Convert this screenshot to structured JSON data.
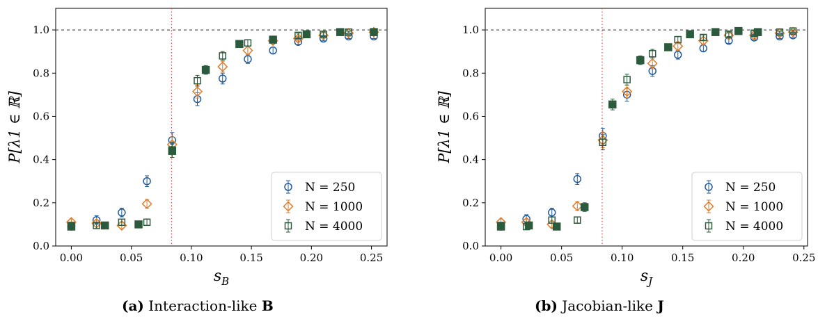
{
  "captions": [
    {
      "tag": "(a)",
      "text": "Interaction-like",
      "symbol": "B"
    },
    {
      "tag": "(b)",
      "text": "Jacobian-like",
      "symbol": "J"
    }
  ],
  "colors": {
    "N250": "#1f5a9e",
    "N1000": "#e07b29",
    "N4000": "#2c5a3c",
    "refline": "#555555",
    "critline": "#d64545"
  },
  "chart_data": [
    {
      "id": "a",
      "type": "scatter",
      "ylabel": "P[λ1 ∈ ℝ]",
      "xlabel": "s_B",
      "xlim": [
        -0.013,
        0.263
      ],
      "ylim": [
        0.0,
        1.1
      ],
      "xticks": [
        "0.00",
        "0.05",
        "0.10",
        "0.15",
        "0.20",
        "0.25"
      ],
      "yticks": [
        "0.0",
        "0.2",
        "0.4",
        "0.6",
        "0.8",
        "1.0"
      ],
      "reference_y": 1.0,
      "critical_x": 0.0835,
      "legend_position": "lower-right",
      "series": [
        {
          "name": "N = 250",
          "marker": "circle",
          "filled": false,
          "x": [
            0.0,
            0.021,
            0.042,
            0.063,
            0.084,
            0.105,
            0.126,
            0.147,
            0.168,
            0.189,
            0.21,
            0.231,
            0.252
          ],
          "y": [
            0.09,
            0.12,
            0.155,
            0.3,
            0.49,
            0.68,
            0.775,
            0.865,
            0.905,
            0.945,
            0.96,
            0.97,
            0.97
          ],
          "err": [
            0.015,
            0.02,
            0.02,
            0.025,
            0.035,
            0.03,
            0.025,
            0.02,
            0.015,
            0.012,
            0.01,
            0.01,
            0.01
          ]
        },
        {
          "name": "N = 1000",
          "marker": "diamond",
          "filled": false,
          "x": [
            0.0,
            0.021,
            0.042,
            0.063,
            0.084,
            0.105,
            0.126,
            0.147,
            0.168,
            0.189,
            0.21,
            0.231,
            0.252
          ],
          "y": [
            0.11,
            0.105,
            0.095,
            0.195,
            0.47,
            0.715,
            0.83,
            0.905,
            0.95,
            0.96,
            0.975,
            0.985,
            0.99
          ],
          "err": [
            0.015,
            0.015,
            0.015,
            0.02,
            0.035,
            0.03,
            0.025,
            0.02,
            0.015,
            0.01,
            0.01,
            0.008,
            0.005
          ]
        },
        {
          "name": "N = 4000",
          "marker": "square",
          "filled": false,
          "x": [
            0.0,
            0.021,
            0.042,
            0.063,
            0.084,
            0.105,
            0.126,
            0.147,
            0.168,
            0.189,
            0.21,
            0.231,
            0.252
          ],
          "y": [
            0.095,
            0.095,
            0.11,
            0.11,
            0.445,
            0.765,
            0.88,
            0.94,
            0.955,
            0.975,
            0.98,
            0.99,
            0.99
          ],
          "err": [
            0.015,
            0.015,
            0.015,
            0.015,
            0.035,
            0.025,
            0.02,
            0.015,
            0.012,
            0.01,
            0.01,
            0.005,
            0.005
          ]
        },
        {
          "name": "",
          "marker": "square",
          "filled": true,
          "x": [
            0.0,
            0.028,
            0.056,
            0.084,
            0.112,
            0.14,
            0.168,
            0.196,
            0.224,
            0.252
          ],
          "y": [
            0.09,
            0.095,
            0.1,
            0.44,
            0.815,
            0.935,
            0.955,
            0.98,
            0.99,
            0.99
          ],
          "err": [
            0.01,
            0.01,
            0.01,
            0.03,
            0.02,
            0.01,
            0.01,
            0.008,
            0.005,
            0.005
          ]
        }
      ]
    },
    {
      "id": "b",
      "type": "scatter",
      "ylabel": "P[λ1 ∈ ℝ]",
      "xlabel": "s_J",
      "xlim": [
        -0.013,
        0.253
      ],
      "ylim": [
        0.0,
        1.1
      ],
      "xticks": [
        "0.00",
        "0.05",
        "0.10",
        "0.15",
        "0.20",
        "0.25"
      ],
      "yticks": [
        "0.0",
        "0.2",
        "0.4",
        "0.6",
        "0.8",
        "1.0"
      ],
      "reference_y": 1.0,
      "critical_x": 0.0835,
      "legend_position": "lower-right",
      "series": [
        {
          "name": "N = 250",
          "marker": "circle",
          "filled": false,
          "x": [
            0.0,
            0.021,
            0.042,
            0.063,
            0.084,
            0.104,
            0.125,
            0.146,
            0.167,
            0.188,
            0.209,
            0.23,
            0.241
          ],
          "y": [
            0.09,
            0.125,
            0.155,
            0.31,
            0.51,
            0.7,
            0.81,
            0.885,
            0.915,
            0.95,
            0.965,
            0.97,
            0.975
          ],
          "err": [
            0.015,
            0.02,
            0.02,
            0.025,
            0.035,
            0.03,
            0.025,
            0.02,
            0.015,
            0.012,
            0.01,
            0.01,
            0.01
          ]
        },
        {
          "name": "N = 1000",
          "marker": "diamond",
          "filled": false,
          "x": [
            0.0,
            0.021,
            0.042,
            0.063,
            0.084,
            0.104,
            0.125,
            0.146,
            0.167,
            0.188,
            0.209,
            0.23,
            0.241
          ],
          "y": [
            0.11,
            0.11,
            0.1,
            0.185,
            0.49,
            0.715,
            0.845,
            0.925,
            0.95,
            0.975,
            0.975,
            0.985,
            0.99
          ],
          "err": [
            0.015,
            0.015,
            0.015,
            0.02,
            0.035,
            0.03,
            0.025,
            0.02,
            0.015,
            0.01,
            0.01,
            0.008,
            0.005
          ]
        },
        {
          "name": "N = 4000",
          "marker": "square",
          "filled": false,
          "x": [
            0.0,
            0.021,
            0.042,
            0.063,
            0.084,
            0.104,
            0.125,
            0.146,
            0.167,
            0.188,
            0.209,
            0.23,
            0.241
          ],
          "y": [
            0.095,
            0.09,
            0.12,
            0.12,
            0.48,
            0.77,
            0.89,
            0.955,
            0.965,
            0.98,
            0.985,
            0.99,
            0.995
          ],
          "err": [
            0.015,
            0.015,
            0.015,
            0.015,
            0.035,
            0.025,
            0.02,
            0.015,
            0.012,
            0.01,
            0.01,
            0.005,
            0.005
          ]
        },
        {
          "name": "",
          "marker": "square",
          "filled": true,
          "x": [
            0.0,
            0.023,
            0.046,
            0.069,
            0.092,
            0.115,
            0.138,
            0.156,
            0.177,
            0.196,
            0.212
          ],
          "y": [
            0.09,
            0.095,
            0.09,
            0.18,
            0.655,
            0.86,
            0.92,
            0.98,
            0.99,
            0.995,
            0.99
          ],
          "err": [
            0.01,
            0.01,
            0.01,
            0.02,
            0.025,
            0.02,
            0.01,
            0.01,
            0.008,
            0.005,
            0.005
          ]
        }
      ]
    }
  ]
}
